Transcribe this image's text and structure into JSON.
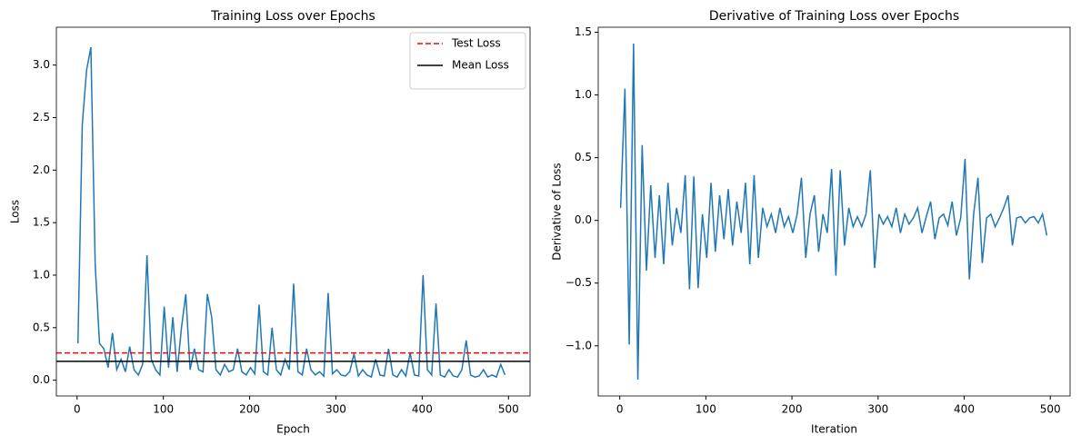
{
  "chart_data": [
    {
      "type": "line",
      "title": "Training Loss over Epochs",
      "xlabel": "Epoch",
      "ylabel": "Loss",
      "x": [
        1,
        6,
        11,
        16,
        21,
        26,
        31,
        36,
        41,
        46,
        51,
        56,
        61,
        66,
        71,
        76,
        81,
        86,
        91,
        96,
        101,
        106,
        111,
        116,
        121,
        126,
        131,
        136,
        141,
        146,
        151,
        156,
        161,
        166,
        171,
        176,
        181,
        186,
        191,
        196,
        201,
        206,
        211,
        216,
        221,
        226,
        231,
        236,
        241,
        246,
        251,
        256,
        261,
        266,
        271,
        276,
        281,
        286,
        291,
        296,
        301,
        306,
        311,
        316,
        321,
        326,
        331,
        336,
        341,
        346,
        351,
        356,
        361,
        366,
        371,
        376,
        381,
        386,
        391,
        396,
        401,
        406,
        411,
        416,
        421,
        426,
        431,
        436,
        441,
        446,
        451,
        456,
        461,
        466,
        471,
        476,
        481,
        486,
        491,
        496
      ],
      "series": [
        {
          "color": "#1f77b4",
          "values": [
            0.35,
            2.43,
            2.95,
            3.17,
            1.1,
            0.35,
            0.3,
            0.12,
            0.45,
            0.1,
            0.2,
            0.08,
            0.32,
            0.1,
            0.05,
            0.15,
            1.19,
            0.2,
            0.1,
            0.05,
            0.7,
            0.12,
            0.6,
            0.08,
            0.5,
            0.82,
            0.1,
            0.3,
            0.1,
            0.08,
            0.82,
            0.6,
            0.1,
            0.05,
            0.15,
            0.08,
            0.1,
            0.3,
            0.08,
            0.05,
            0.12,
            0.06,
            0.72,
            0.08,
            0.05,
            0.5,
            0.1,
            0.05,
            0.2,
            0.1,
            0.92,
            0.08,
            0.05,
            0.3,
            0.1,
            0.05,
            0.08,
            0.04,
            0.83,
            0.06,
            0.1,
            0.05,
            0.04,
            0.08,
            0.25,
            0.04,
            0.1,
            0.05,
            0.03,
            0.2,
            0.05,
            0.04,
            0.3,
            0.05,
            0.03,
            0.1,
            0.04,
            0.26,
            0.05,
            0.04,
            1.0,
            0.1,
            0.05,
            0.73,
            0.05,
            0.03,
            0.1,
            0.04,
            0.03,
            0.1,
            0.38,
            0.05,
            0.03,
            0.04,
            0.1,
            0.03,
            0.05,
            0.03,
            0.15,
            0.05
          ]
        }
      ],
      "hlines": [
        {
          "name": "Test Loss",
          "value": 0.26,
          "color": "#ff0000",
          "style": "dashed"
        },
        {
          "name": "Mean Loss",
          "value": 0.18,
          "color": "#000000",
          "style": "solid"
        }
      ],
      "legend": "upper right",
      "xlim": [
        -24,
        525
      ],
      "ylim": [
        -0.15,
        3.36
      ],
      "xticks": [
        0,
        100,
        200,
        300,
        400,
        500
      ],
      "yticks": [
        {
          "value": 0,
          "label": "0.0"
        },
        0.5,
        {
          "value": 1,
          "label": "1.0"
        },
        1.5,
        {
          "value": 2,
          "label": "2.0"
        },
        2.5,
        {
          "value": 3,
          "label": "3.0"
        }
      ]
    },
    {
      "type": "line",
      "title": "Derivative of Training Loss over Epochs",
      "xlabel": "Iteration",
      "ylabel": "Derivative of Loss",
      "x": [
        1,
        6,
        11,
        16,
        21,
        26,
        31,
        36,
        41,
        46,
        51,
        56,
        61,
        66,
        71,
        76,
        81,
        86,
        91,
        96,
        101,
        106,
        111,
        116,
        121,
        126,
        131,
        136,
        141,
        146,
        151,
        156,
        161,
        166,
        171,
        176,
        181,
        186,
        191,
        196,
        201,
        206,
        211,
        216,
        221,
        226,
        231,
        236,
        241,
        246,
        251,
        256,
        261,
        266,
        271,
        276,
        281,
        286,
        291,
        296,
        301,
        306,
        311,
        316,
        321,
        326,
        331,
        336,
        341,
        346,
        351,
        356,
        361,
        366,
        371,
        376,
        381,
        386,
        391,
        396,
        401,
        406,
        411,
        416,
        421,
        426,
        431,
        436,
        441,
        446,
        451,
        456,
        461,
        466,
        471,
        476,
        481,
        486,
        491,
        496
      ],
      "series": [
        {
          "color": "#1f77b4",
          "values": [
            0.1,
            1.05,
            -0.99,
            1.41,
            -1.27,
            0.6,
            -0.4,
            0.28,
            -0.3,
            0.2,
            -0.35,
            0.3,
            -0.2,
            0.1,
            -0.1,
            0.36,
            -0.55,
            0.35,
            -0.54,
            0.05,
            -0.3,
            0.3,
            -0.25,
            0.2,
            -0.15,
            0.25,
            -0.2,
            0.15,
            -0.1,
            0.3,
            -0.35,
            0.36,
            -0.3,
            0.1,
            -0.05,
            0.05,
            -0.1,
            0.1,
            -0.05,
            0.03,
            -0.1,
            0.05,
            0.34,
            -0.3,
            0.05,
            0.2,
            -0.25,
            0.05,
            -0.1,
            0.41,
            -0.44,
            0.4,
            -0.2,
            0.1,
            -0.05,
            0.03,
            -0.05,
            0.05,
            0.4,
            -0.38,
            0.05,
            -0.03,
            0.03,
            -0.05,
            0.1,
            -0.1,
            0.05,
            -0.03,
            0.02,
            0.1,
            -0.1,
            0.03,
            0.15,
            -0.15,
            0.02,
            0.05,
            -0.04,
            0.15,
            -0.12,
            0.02,
            0.49,
            -0.47,
            0.05,
            0.34,
            -0.34,
            0.02,
            0.05,
            -0.05,
            0.02,
            0.1,
            0.2,
            -0.2,
            0.02,
            0.03,
            -0.02,
            0.02,
            0.03,
            -0.02,
            0.05,
            -0.12
          ]
        }
      ],
      "xlim": [
        -25,
        523
      ],
      "ylim": [
        -1.4,
        1.54
      ],
      "xticks": [
        0,
        100,
        200,
        300,
        400,
        500
      ],
      "yticks": [
        {
          "value": -1,
          "label": "−1.0"
        },
        {
          "value": -0.5,
          "label": "−0.5"
        },
        {
          "value": 0,
          "label": "0.0"
        },
        0.5,
        {
          "value": 1,
          "label": "1.0"
        },
        1.5
      ]
    }
  ]
}
